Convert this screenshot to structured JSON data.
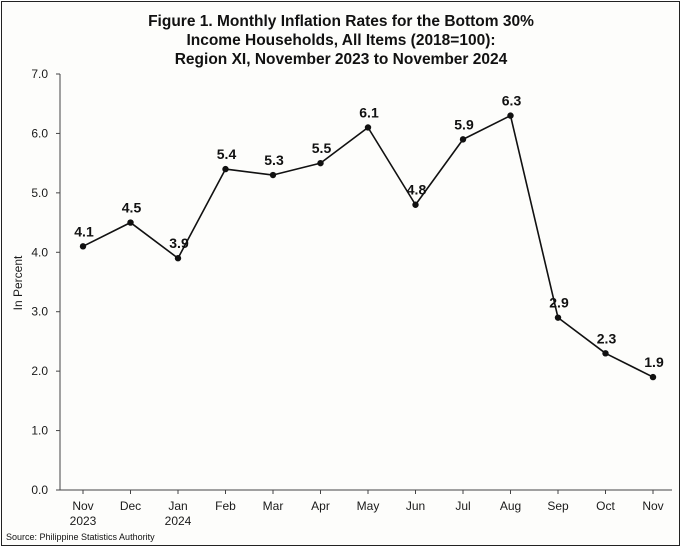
{
  "chart_data": {
    "type": "line",
    "title_lines": [
      "Figure 1. Monthly Inflation Rates for the Bottom 30%",
      "Income Households, All Items (2018=100):",
      "Region XI, November 2023 to November 2024"
    ],
    "ylabel": "In Percent",
    "xlabel": "",
    "ylim": [
      0.0,
      7.0
    ],
    "y_ticks": [
      "0.0",
      "1.0",
      "2.0",
      "3.0",
      "4.0",
      "5.0",
      "6.0",
      "7.0"
    ],
    "categories": [
      [
        "Nov",
        "2023"
      ],
      [
        "Dec"
      ],
      [
        "Jan",
        "2024"
      ],
      [
        "Feb"
      ],
      [
        "Mar"
      ],
      [
        "Apr"
      ],
      [
        "May"
      ],
      [
        "Jun"
      ],
      [
        "Jul"
      ],
      [
        "Aug"
      ],
      [
        "Sep"
      ],
      [
        "Oct"
      ],
      [
        "Nov"
      ]
    ],
    "series": [
      {
        "values": [
          4.1,
          4.5,
          3.9,
          5.4,
          5.3,
          5.5,
          6.1,
          4.8,
          5.9,
          6.3,
          2.9,
          2.3,
          1.9
        ],
        "labels": [
          "4.1",
          "4.5",
          "3.9",
          "5.4",
          "5.3",
          "5.5",
          "6.1",
          "4.8",
          "5.9",
          "6.3",
          "2.9",
          "2.3",
          "1.9"
        ],
        "color": "#111111"
      }
    ],
    "grid": false,
    "source": "Source: Philippine Statistics Authority"
  }
}
